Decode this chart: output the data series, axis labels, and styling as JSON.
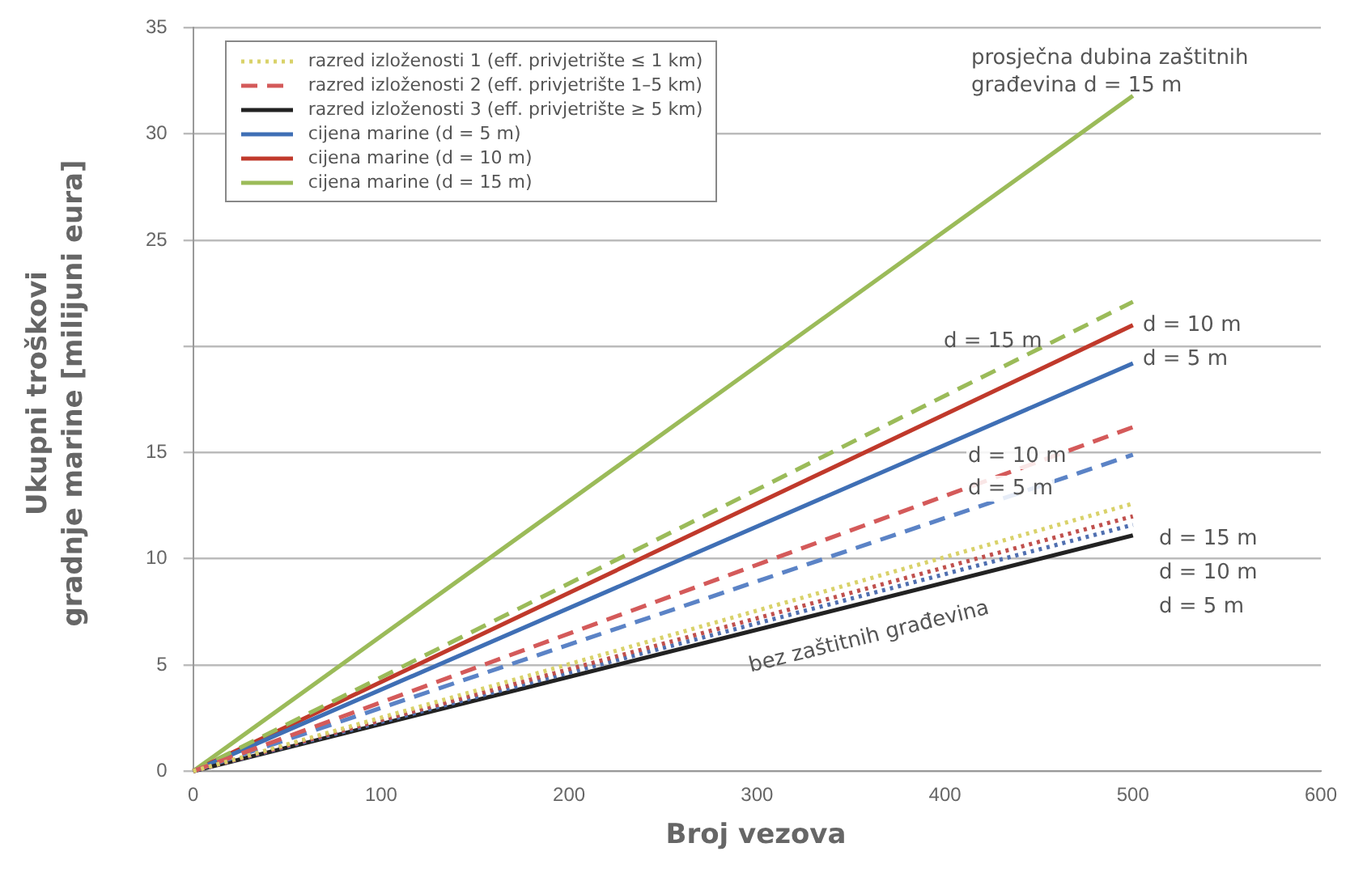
{
  "chart_data": {
    "type": "line",
    "xlabel": "Broj vezova",
    "ylabel": "Ukupni troškovi\ngradnje marine [milijuni eura]",
    "xlim": [
      0,
      600
    ],
    "xticks": [
      0,
      100,
      200,
      300,
      400,
      500,
      600
    ],
    "ylim": [
      0,
      35
    ],
    "yticks": [
      0,
      5,
      10,
      15,
      {
        "value": 20,
        "label": null
      },
      25,
      30,
      35
    ],
    "x": [
      0,
      500
    ],
    "grid": "y",
    "legend": "top left",
    "marker": "none",
    "series": [
      {
        "name": "razred izloženosti 1 (eff. privjetrište ≤ 1 km)",
        "color": "#d9d26a",
        "line_style": "dotted",
        "values": [
          0,
          12.6
        ]
      },
      {
        "color": "#c0504d",
        "line_style": "dotted",
        "values": [
          0,
          12.0
        ]
      },
      {
        "color": "#4f6fb0",
        "line_style": "dotted",
        "values": [
          0,
          11.6
        ]
      },
      {
        "name": "razred izloženosti 2 (eff. privjetrište 1–5 km)",
        "color": "#d45a5a",
        "line_style": "dashed",
        "values": [
          0,
          16.2
        ]
      },
      {
        "color": "#5b83c6",
        "line_style": "dashed",
        "values": [
          0,
          14.9
        ]
      },
      {
        "color": "#9bbb59",
        "line_style": "dashed",
        "values": [
          0,
          22.1
        ]
      },
      {
        "name": "razred izloženosti 3 (eff. privjetrište ≥ 5 km)",
        "color": "#222222",
        "line_style": "solid",
        "values": [
          0,
          11.1
        ]
      },
      {
        "name": "cijena marine (d = 5 m)",
        "color": "#3f6fb5",
        "line_style": "solid",
        "values": [
          0,
          19.2
        ]
      },
      {
        "name": "cijena marine (d = 10 m)",
        "color": "#c0392b",
        "line_style": "solid",
        "values": [
          0,
          21.0
        ]
      },
      {
        "name": "cijena marine (d = 15 m)",
        "color": "#9bbb59",
        "line_style": "solid",
        "values": [
          0,
          31.8
        ]
      }
    ],
    "annotations": [
      "prosječna dubina zaštitnih\ngrađevina d = 15 m",
      "d = 15 m",
      "d = 10 m",
      "d = 5 m",
      "d = 10 m",
      "d = 5 m",
      "d = 15 m",
      "d = 10 m",
      "d = 5 m",
      "bez zaštitnih građevina"
    ]
  }
}
